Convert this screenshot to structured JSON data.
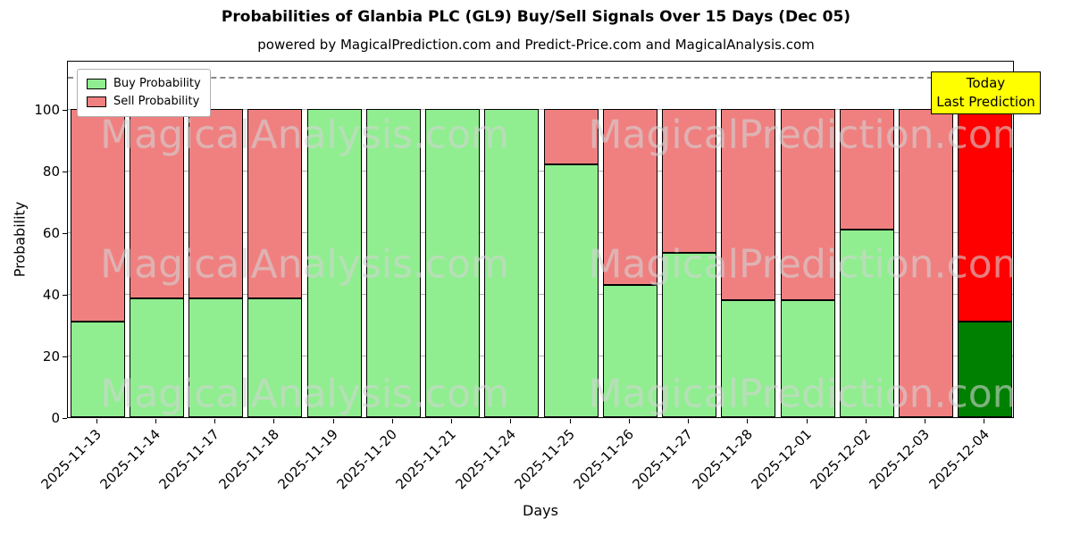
{
  "title": "Probabilities of Glanbia PLC (GL9) Buy/Sell Signals Over 15 Days (Dec 05)",
  "subtitle": "powered by MagicalPrediction.com and Predict-Price.com and MagicalAnalysis.com",
  "legend": {
    "buy": "Buy Probability",
    "sell": "Sell Probability"
  },
  "today_box": {
    "line1": "Today",
    "line2": "Last Prediction",
    "bg_color": "#ffff00"
  },
  "watermarks": {
    "left": "MagicalAnalysis.com",
    "right": "MagicalPrediction.com"
  },
  "chart_data": {
    "type": "bar",
    "stacked": true,
    "title": "Probabilities of Glanbia PLC (GL9) Buy/Sell Signals Over 15 Days (Dec 05)",
    "xlabel": "Days",
    "ylabel": "Probability",
    "ylim": [
      0,
      116
    ],
    "yticks": [
      0,
      20,
      40,
      60,
      80,
      100
    ],
    "dashed_line_y": 110,
    "grid": true,
    "legend_position": "upper left",
    "categories": [
      "2025-11-13",
      "2025-11-14",
      "2025-11-17",
      "2025-11-18",
      "2025-11-19",
      "2025-11-20",
      "2025-11-21",
      "2025-11-24",
      "2025-11-25",
      "2025-11-26",
      "2025-11-27",
      "2025-11-28",
      "2025-12-01",
      "2025-12-02",
      "2025-12-03",
      "2025-12-04"
    ],
    "series": [
      {
        "name": "Buy Probability",
        "color": "#90EE90",
        "values": [
          31,
          38.5,
          38.5,
          38.5,
          100,
          100,
          100,
          100,
          82,
          43,
          53.5,
          38,
          38,
          61,
          0,
          31
        ]
      },
      {
        "name": "Sell Probability",
        "color": "#F08080",
        "values": [
          69,
          61.5,
          61.5,
          61.5,
          0,
          0,
          0,
          0,
          18,
          57,
          46.5,
          62,
          62,
          39,
          100,
          69
        ]
      }
    ],
    "today_index": 15,
    "today_colors": {
      "buy": "#008000",
      "sell": "#FF0000"
    },
    "bar_edge_color": "#000000"
  }
}
